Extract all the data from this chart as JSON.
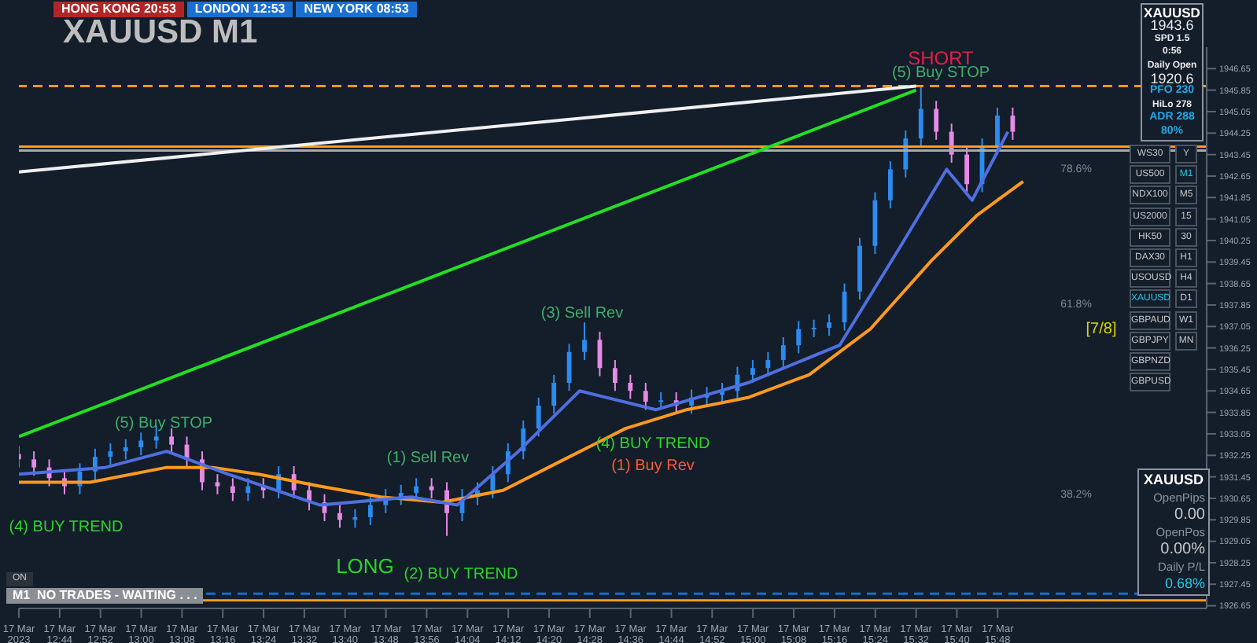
{
  "chart_data": {
    "type": "candlestick",
    "title": "XAUUSD M1",
    "x": [
      "2023-03-17T12:36",
      "2023-03-17T12:39",
      "2023-03-17T12:42",
      "2023-03-17T12:45",
      "2023-03-17T12:48",
      "2023-03-17T12:51",
      "2023-03-17T12:54",
      "2023-03-17T12:57",
      "2023-03-17T13:00",
      "2023-03-17T13:03",
      "2023-03-17T13:06",
      "2023-03-17T13:09",
      "2023-03-17T13:12",
      "2023-03-17T13:15",
      "2023-03-17T13:18",
      "2023-03-17T13:21",
      "2023-03-17T13:24",
      "2023-03-17T13:27",
      "2023-03-17T13:30",
      "2023-03-17T13:33",
      "2023-03-17T13:36",
      "2023-03-17T13:39",
      "2023-03-17T13:42",
      "2023-03-17T13:45",
      "2023-03-17T13:48",
      "2023-03-17T13:51",
      "2023-03-17T13:54",
      "2023-03-17T13:57",
      "2023-03-17T14:00",
      "2023-03-17T14:03",
      "2023-03-17T14:06",
      "2023-03-17T14:09",
      "2023-03-17T14:12",
      "2023-03-17T14:15",
      "2023-03-17T14:18",
      "2023-03-17T14:21",
      "2023-03-17T14:24",
      "2023-03-17T14:27",
      "2023-03-17T14:30",
      "2023-03-17T14:33",
      "2023-03-17T14:36",
      "2023-03-17T14:39",
      "2023-03-17T14:42",
      "2023-03-17T14:45",
      "2023-03-17T14:48",
      "2023-03-17T14:51",
      "2023-03-17T14:54",
      "2023-03-17T14:57",
      "2023-03-17T15:00",
      "2023-03-17T15:03",
      "2023-03-17T15:06",
      "2023-03-17T15:09",
      "2023-03-17T15:12",
      "2023-03-17T15:15",
      "2023-03-17T15:18",
      "2023-03-17T15:21",
      "2023-03-17T15:24",
      "2023-03-17T15:27",
      "2023-03-17T15:30",
      "2023-03-17T15:33",
      "2023-03-17T15:36",
      "2023-03-17T15:39",
      "2023-03-17T15:42",
      "2023-03-17T15:45",
      "2023-03-17T15:48",
      "2023-03-17T15:51"
    ],
    "ohlc": [
      [
        1932.3,
        1932.6,
        1931.8,
        1932.1
      ],
      [
        1932.1,
        1932.4,
        1931.5,
        1931.8
      ],
      [
        1931.8,
        1932.1,
        1931.1,
        1931.4
      ],
      [
        1931.4,
        1931.7,
        1930.8,
        1931.1
      ],
      [
        1931.1,
        1931.95,
        1930.8,
        1931.65
      ],
      [
        1931.65,
        1932.5,
        1931.35,
        1932.2
      ],
      [
        1932.2,
        1932.7,
        1931.9,
        1932.4
      ],
      [
        1932.4,
        1932.85,
        1932.1,
        1932.55
      ],
      [
        1932.55,
        1933.1,
        1932.25,
        1932.8
      ],
      [
        1932.8,
        1933.35,
        1932.5,
        1932.95
      ],
      [
        1932.95,
        1933.25,
        1932.35,
        1932.65
      ],
      [
        1932.65,
        1932.95,
        1931.8,
        1932.1
      ],
      [
        1932.1,
        1932.4,
        1930.95,
        1931.25
      ],
      [
        1931.25,
        1931.55,
        1930.8,
        1931.1
      ],
      [
        1931.1,
        1931.4,
        1930.55,
        1930.85
      ],
      [
        1930.85,
        1931.4,
        1930.55,
        1931.1
      ],
      [
        1931.1,
        1931.4,
        1930.65,
        1930.95
      ],
      [
        1930.95,
        1931.85,
        1930.65,
        1931.55
      ],
      [
        1931.55,
        1931.85,
        1930.65,
        1930.95
      ],
      [
        1930.95,
        1931.25,
        1930.2,
        1930.5
      ],
      [
        1930.5,
        1930.8,
        1929.8,
        1930.1
      ],
      [
        1930.1,
        1930.4,
        1929.55,
        1929.85
      ],
      [
        1929.85,
        1930.25,
        1929.55,
        1929.95
      ],
      [
        1929.95,
        1930.7,
        1929.65,
        1930.4
      ],
      [
        1930.4,
        1931.0,
        1930.1,
        1930.7
      ],
      [
        1930.7,
        1931.15,
        1930.4,
        1930.85
      ],
      [
        1930.85,
        1931.4,
        1930.55,
        1931.1
      ],
      [
        1931.1,
        1931.4,
        1930.65,
        1930.95
      ],
      [
        1930.95,
        1931.25,
        1929.25,
        1930.1
      ],
      [
        1930.1,
        1931.0,
        1929.8,
        1930.7
      ],
      [
        1930.7,
        1931.25,
        1930.4,
        1930.95
      ],
      [
        1930.95,
        1931.85,
        1930.65,
        1931.55
      ],
      [
        1931.55,
        1932.7,
        1931.25,
        1932.4
      ],
      [
        1932.4,
        1933.55,
        1932.1,
        1933.25
      ],
      [
        1933.25,
        1934.4,
        1932.95,
        1934.1
      ],
      [
        1934.1,
        1935.25,
        1933.8,
        1934.95
      ],
      [
        1934.95,
        1936.4,
        1934.65,
        1936.1
      ],
      [
        1936.1,
        1937.2,
        1935.8,
        1936.55
      ],
      [
        1936.55,
        1936.85,
        1935.2,
        1935.5
      ],
      [
        1935.5,
        1935.8,
        1934.65,
        1934.95
      ],
      [
        1934.95,
        1935.25,
        1934.35,
        1934.65
      ],
      [
        1934.65,
        1934.95,
        1933.95,
        1934.25
      ],
      [
        1934.25,
        1934.6,
        1933.95,
        1934.3
      ],
      [
        1934.3,
        1934.6,
        1933.8,
        1934.1
      ],
      [
        1934.1,
        1934.7,
        1933.8,
        1934.4
      ],
      [
        1934.4,
        1934.8,
        1934.1,
        1934.5
      ],
      [
        1934.5,
        1934.95,
        1934.2,
        1934.65
      ],
      [
        1934.65,
        1935.55,
        1934.35,
        1935.25
      ],
      [
        1935.25,
        1935.8,
        1934.95,
        1935.5
      ],
      [
        1935.5,
        1936.1,
        1935.2,
        1935.8
      ],
      [
        1935.8,
        1936.65,
        1935.5,
        1936.35
      ],
      [
        1936.35,
        1937.25,
        1936.05,
        1936.95
      ],
      [
        1936.95,
        1937.3,
        1936.65,
        1937.0
      ],
      [
        1937.0,
        1937.5,
        1936.7,
        1937.2
      ],
      [
        1937.2,
        1938.65,
        1936.9,
        1938.35
      ],
      [
        1938.35,
        1940.35,
        1938.05,
        1940.05
      ],
      [
        1940.05,
        1942.05,
        1939.75,
        1941.75
      ],
      [
        1941.75,
        1943.2,
        1941.45,
        1942.9
      ],
      [
        1942.9,
        1944.35,
        1942.6,
        1944.05
      ],
      [
        1944.05,
        1946.0,
        1943.75,
        1945.15
      ],
      [
        1945.15,
        1945.45,
        1944.0,
        1944.3
      ],
      [
        1944.3,
        1944.6,
        1943.15,
        1943.45
      ],
      [
        1943.45,
        1943.75,
        1942.05,
        1942.35
      ],
      [
        1942.35,
        1944.05,
        1942.05,
        1943.75
      ],
      [
        1943.75,
        1945.2,
        1943.45,
        1944.9
      ],
      [
        1944.9,
        1945.2,
        1944.0,
        1944.3
      ]
    ],
    "series": [
      {
        "type": "line",
        "color": "#ff9a1f",
        "x": [
          "2023-03-17T12:36",
          "2023-03-17T12:50",
          "2023-03-17T13:05",
          "2023-03-17T13:14",
          "2023-03-17T13:23",
          "2023-03-17T13:35",
          "2023-03-17T13:47",
          "2023-03-17T13:59",
          "2023-03-17T14:11",
          "2023-03-17T14:23",
          "2023-03-17T14:35",
          "2023-03-17T14:47",
          "2023-03-17T14:59",
          "2023-03-17T15:11",
          "2023-03-17T15:23",
          "2023-03-17T15:35",
          "2023-03-17T15:44",
          "2023-03-17T15:53"
        ],
        "values": [
          1931.25,
          1931.25,
          1931.8,
          1931.8,
          1931.55,
          1931.1,
          1930.7,
          1930.5,
          1930.95,
          1932.1,
          1933.25,
          1933.95,
          1934.4,
          1935.25,
          1936.95,
          1939.5,
          1941.2,
          1942.45
        ]
      },
      {
        "type": "line",
        "color": "#4f6fe0",
        "x": [
          "2023-03-17T12:36",
          "2023-03-17T12:53",
          "2023-03-17T13:05",
          "2023-03-17T13:17",
          "2023-03-17T13:35",
          "2023-03-17T13:53",
          "2023-03-17T14:02",
          "2023-03-17T14:14",
          "2023-03-17T14:26",
          "2023-03-17T14:41",
          "2023-03-17T14:59",
          "2023-03-17T15:17",
          "2023-03-17T15:29",
          "2023-03-17T15:38",
          "2023-03-17T15:43",
          "2023-03-17T15:50"
        ],
        "values": [
          1931.55,
          1931.8,
          1932.4,
          1931.55,
          1930.4,
          1930.7,
          1930.4,
          1932.4,
          1934.65,
          1933.95,
          1934.95,
          1936.35,
          1940.05,
          1942.9,
          1941.75,
          1944.3
        ]
      },
      {
        "type": "line",
        "color": "#22e022",
        "x": [
          "2023-03-17T12:36",
          "2023-03-17T15:32"
        ],
        "values": [
          1932.95,
          1945.85
        ]
      },
      {
        "type": "line",
        "color": "#f0f0f0",
        "x": [
          "2023-03-17T12:36",
          "2023-03-17T15:32"
        ],
        "values": [
          1942.8,
          1946.0
        ]
      }
    ],
    "xlim": [
      "2023-03-17T12:36",
      "2023-03-17T16:29"
    ],
    "xticks": [
      {
        "value": "2023-03-17T12:36",
        "label": "17 Mar 2023"
      },
      {
        "value": "2023-03-17T12:44",
        "label": "17 Mar 12:44"
      },
      {
        "value": "2023-03-17T12:52",
        "label": "17 Mar 12:52"
      },
      {
        "value": "2023-03-17T13:00",
        "label": "17 Mar 13:00"
      },
      {
        "value": "2023-03-17T13:08",
        "label": "17 Mar 13:08"
      },
      {
        "value": "2023-03-17T13:16",
        "label": "17 Mar 13:16"
      },
      {
        "value": "2023-03-17T13:24",
        "label": "17 Mar 13:24"
      },
      {
        "value": "2023-03-17T13:32",
        "label": "17 Mar 13:32"
      },
      {
        "value": "2023-03-17T13:40",
        "label": "17 Mar 13:40"
      },
      {
        "value": "2023-03-17T13:48",
        "label": "17 Mar 13:48"
      },
      {
        "value": "2023-03-17T13:56",
        "label": "17 Mar 13:56"
      },
      {
        "value": "2023-03-17T14:04",
        "label": "17 Mar 14:04"
      },
      {
        "value": "2023-03-17T14:12",
        "label": "17 Mar 14:12"
      },
      {
        "value": "2023-03-17T14:20",
        "label": "17 Mar 14:20"
      },
      {
        "value": "2023-03-17T14:28",
        "label": "17 Mar 14:28"
      },
      {
        "value": "2023-03-17T14:36",
        "label": "17 Mar 14:36"
      },
      {
        "value": "2023-03-17T14:44",
        "label": "17 Mar 14:44"
      },
      {
        "value": "2023-03-17T14:52",
        "label": "17 Mar 14:52"
      },
      {
        "value": "2023-03-17T15:00",
        "label": "17 Mar 15:00"
      },
      {
        "value": "2023-03-17T15:08",
        "label": "17 Mar 15:08"
      },
      {
        "value": "2023-03-17T15:16",
        "label": "17 Mar 15:16"
      },
      {
        "value": "2023-03-17T15:24",
        "label": "17 Mar 15:24"
      },
      {
        "value": "2023-03-17T15:32",
        "label": "17 Mar 15:32"
      },
      {
        "value": "2023-03-17T15:40",
        "label": "17 Mar 15:40"
      },
      {
        "value": "2023-03-17T15:48",
        "label": "17 Mar 15:48"
      }
    ],
    "ylim": [
      1926.55,
      1947.45
    ],
    "yticks": [
      1926.65,
      1927.45,
      1928.25,
      1929.05,
      1929.85,
      1930.65,
      1931.45,
      1932.25,
      1933.05,
      1933.85,
      1934.65,
      1935.45,
      1936.25,
      1937.05,
      1937.85,
      1938.65,
      1939.45,
      1940.25,
      1941.05,
      1941.85,
      1942.65,
      1943.45,
      1944.25,
      1945.05,
      1945.85,
      1946.65
    ],
    "ref_lines": [
      {
        "axis": "y",
        "value": 1946.0,
        "color": "#ff9a1f",
        "line_style": "dashed"
      },
      {
        "axis": "y",
        "value": 1943.75,
        "color": "#ff9a1f"
      },
      {
        "axis": "y",
        "value": 1943.6,
        "color": "#aaaaaa"
      },
      {
        "axis": "y",
        "value": 1927.1,
        "color": "#1e6bc4",
        "line_style": "dashed"
      },
      {
        "axis": "y",
        "value": 1926.85,
        "color": "#ff9a1f"
      }
    ],
    "annotations": [
      "HONG KONG 20:53",
      "LONDON 12:53",
      "NEW YORK 08:53",
      "XAUUSD",
      "1943.6",
      "SPD 1.5",
      "0:56",
      "Daily Open",
      "1920.6",
      "PFO 230",
      "HiLo 278",
      "ADR 288",
      "80%",
      "WS30",
      "US500",
      "NDX100",
      "US2000",
      "HK50",
      "DAX30",
      "USOUSD",
      "XAUUSD",
      "GBPAUD",
      "GBPJPY",
      "GBPNZD",
      "GBPUSD",
      "Y",
      "M1",
      "M5",
      "15",
      "30",
      "H1",
      "H4",
      "D1",
      "W1",
      "MN",
      "XAUUSD",
      "OpenPips",
      "0.00",
      "OpenPos",
      "0.00%",
      "Daily P/L",
      "0.68%",
      "ON",
      "M1  NO TRADES - WAITING . . .",
      "(4) BUY TREND",
      "(5) Buy STOP",
      "(1) Sell Rev",
      "LONG",
      "(2) BUY TREND",
      "(3) Sell Rev",
      "(4) BUY TREND",
      "(1) Buy Rev",
      "SHORT",
      "(5) Buy STOP",
      "[7/8]",
      "78.6%",
      "61.8%",
      "38.2%"
    ],
    "legend": false,
    "grid": false
  }
}
